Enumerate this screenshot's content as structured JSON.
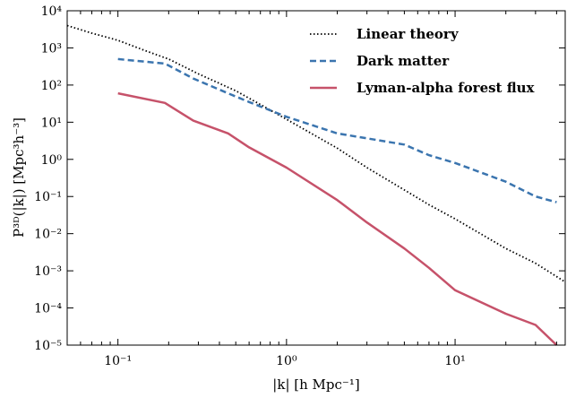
{
  "chart_data": {
    "type": "line",
    "title": "",
    "xlabel": "|k| [h Mpc⁻¹]",
    "ylabel": "P³ᴰ(|k|) [Mpc³h⁻³]",
    "xscale": "log",
    "yscale": "log",
    "xlim": [
      0.05,
      45
    ],
    "ylim": [
      1e-05,
      10000
    ],
    "grid": false,
    "legend_position": "top-right",
    "x_ticks": [
      "10⁻¹",
      "10⁰",
      "10¹"
    ],
    "y_ticks": [
      "10⁻⁵",
      "10⁻⁴",
      "10⁻³",
      "10⁻²",
      "10⁻¹",
      "10⁰",
      "10¹",
      "10²",
      "10³",
      "10⁴"
    ],
    "series": [
      {
        "name": "Linear theory",
        "color": "#000000",
        "style": "dotted",
        "x": [
          0.05,
          0.07,
          0.1,
          0.15,
          0.2,
          0.3,
          0.5,
          0.7,
          1,
          2,
          3,
          5,
          7,
          10,
          20,
          30,
          45
        ],
        "y": [
          4000,
          2500,
          1600,
          800,
          500,
          200,
          70,
          30,
          12,
          2,
          0.6,
          0.15,
          0.06,
          0.025,
          0.004,
          0.0016,
          0.0005
        ]
      },
      {
        "name": "Dark matter",
        "color": "#3b75af",
        "style": "dashed",
        "x": [
          0.1,
          0.19,
          0.28,
          0.45,
          0.6,
          1,
          2,
          5,
          7,
          10,
          20,
          30,
          40
        ],
        "y": [
          500,
          380,
          150,
          60,
          35,
          14,
          5,
          2.5,
          1.3,
          0.8,
          0.25,
          0.1,
          0.07
        ]
      },
      {
        "name": "Lyman-alpha forest flux",
        "color": "#c6526a",
        "style": "solid",
        "x": [
          0.1,
          0.19,
          0.28,
          0.45,
          0.6,
          1,
          2,
          3,
          5,
          7,
          10,
          20,
          30,
          40
        ],
        "y": [
          60,
          33,
          11,
          5,
          2.1,
          0.6,
          0.08,
          0.02,
          0.004,
          0.0012,
          0.0003,
          7e-05,
          3.5e-05,
          1e-05
        ]
      }
    ]
  }
}
